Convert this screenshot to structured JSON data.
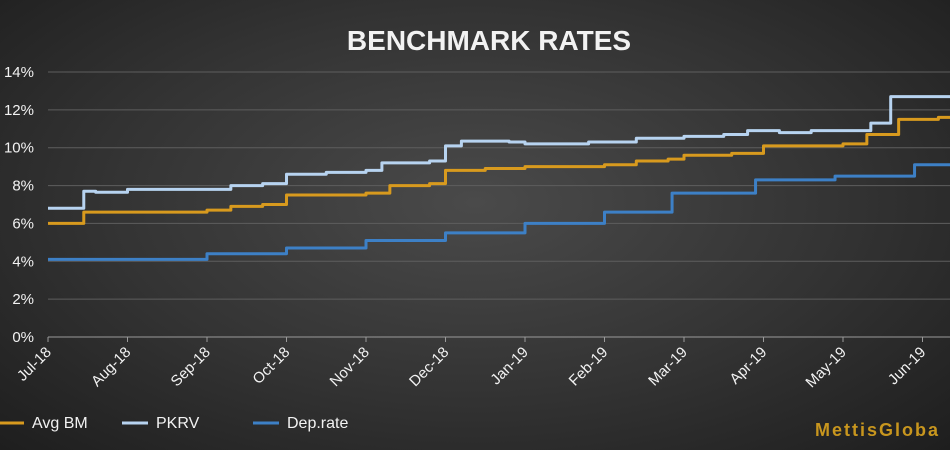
{
  "chart_data": {
    "type": "line",
    "title": "BENCHMARK RATES",
    "xlabel": "",
    "ylabel": "",
    "ylim": [
      0,
      14
    ],
    "y_ticks": [
      "0%",
      "2%",
      "4%",
      "6%",
      "8%",
      "10%",
      "12%",
      "14%"
    ],
    "y_tick_values": [
      0,
      2,
      4,
      6,
      8,
      10,
      12,
      14
    ],
    "x_ticks": [
      "Jul-18",
      "Aug-18",
      "Sep-18",
      "Oct-18",
      "Nov-18",
      "Dec-18",
      "Jan-19",
      "Feb-19",
      "Mar-19",
      "Apr-19",
      "May-19",
      "Jun-19"
    ],
    "grid": true,
    "legend_position": "bottom",
    "series": [
      {
        "name": "Avg BM",
        "color": "#d89a1e",
        "points": [
          [
            0,
            6.0
          ],
          [
            0.35,
            6.0
          ],
          [
            0.45,
            6.6
          ],
          [
            0.6,
            6.6
          ],
          [
            1.0,
            6.6
          ],
          [
            2.0,
            6.7
          ],
          [
            2.3,
            6.9
          ],
          [
            2.7,
            7.0
          ],
          [
            3.0,
            7.5
          ],
          [
            3.5,
            7.5
          ],
          [
            4.0,
            7.6
          ],
          [
            4.3,
            8.0
          ],
          [
            4.8,
            8.1
          ],
          [
            5.0,
            8.8
          ],
          [
            5.5,
            8.9
          ],
          [
            6.0,
            9.0
          ],
          [
            6.6,
            9.0
          ],
          [
            7.0,
            9.1
          ],
          [
            7.4,
            9.3
          ],
          [
            7.8,
            9.4
          ],
          [
            8.0,
            9.6
          ],
          [
            8.6,
            9.7
          ],
          [
            9.0,
            10.1
          ],
          [
            9.5,
            10.1
          ],
          [
            10.0,
            10.2
          ],
          [
            10.3,
            10.7
          ],
          [
            10.7,
            11.5
          ],
          [
            11.2,
            11.6
          ],
          [
            11.6,
            11.7
          ]
        ]
      },
      {
        "name": "PKRV",
        "color": "#b7d3f0",
        "points": [
          [
            0,
            6.8
          ],
          [
            0.35,
            6.8
          ],
          [
            0.45,
            7.7
          ],
          [
            0.6,
            7.65
          ],
          [
            1.0,
            7.8
          ],
          [
            2.0,
            7.8
          ],
          [
            2.3,
            8.0
          ],
          [
            2.7,
            8.1
          ],
          [
            3.0,
            8.6
          ],
          [
            3.5,
            8.7
          ],
          [
            4.0,
            8.8
          ],
          [
            4.2,
            9.2
          ],
          [
            4.8,
            9.3
          ],
          [
            5.0,
            10.1
          ],
          [
            5.2,
            10.35
          ],
          [
            5.8,
            10.3
          ],
          [
            6.0,
            10.2
          ],
          [
            6.8,
            10.3
          ],
          [
            7.4,
            10.5
          ],
          [
            8.0,
            10.6
          ],
          [
            8.5,
            10.7
          ],
          [
            8.8,
            10.9
          ],
          [
            9.2,
            10.8
          ],
          [
            9.6,
            10.9
          ],
          [
            10.2,
            10.9
          ],
          [
            10.35,
            11.3
          ],
          [
            10.6,
            12.7
          ],
          [
            11.2,
            12.7
          ],
          [
            11.6,
            12.75
          ]
        ]
      },
      {
        "name": "Dep.rate",
        "color": "#3d80c6",
        "points": [
          [
            0,
            4.1
          ],
          [
            1.0,
            4.1
          ],
          [
            2.0,
            4.1
          ],
          [
            2.0,
            4.4
          ],
          [
            3.0,
            4.4
          ],
          [
            3.0,
            4.7
          ],
          [
            4.0,
            4.7
          ],
          [
            4.0,
            5.1
          ],
          [
            5.0,
            5.1
          ],
          [
            5.0,
            5.5
          ],
          [
            6.0,
            5.5
          ],
          [
            6.0,
            6.0
          ],
          [
            7.0,
            6.0
          ],
          [
            7.0,
            6.6
          ],
          [
            7.85,
            6.6
          ],
          [
            7.85,
            7.6
          ],
          [
            8.9,
            7.6
          ],
          [
            8.9,
            8.3
          ],
          [
            9.9,
            8.3
          ],
          [
            9.9,
            8.5
          ],
          [
            10.9,
            8.5
          ],
          [
            10.9,
            9.1
          ],
          [
            11.6,
            9.1
          ]
        ]
      }
    ]
  },
  "watermark": "MettisGloba"
}
